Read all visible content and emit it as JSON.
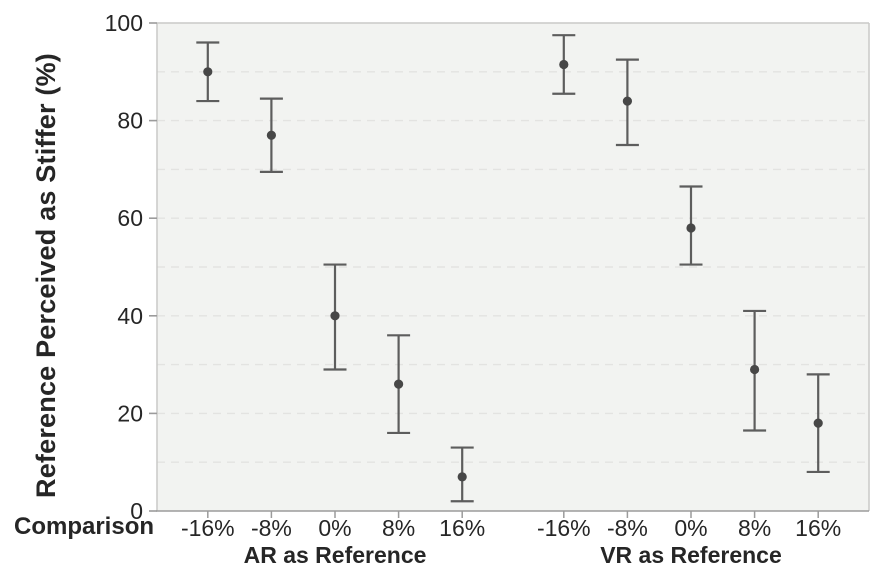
{
  "chart_data": {
    "type": "scatter",
    "title": "",
    "ylabel": "Reference Perceived as Stiffer (%)",
    "xlabel": "Comparison",
    "ylim": [
      0,
      100
    ],
    "yticks": [
      0,
      20,
      40,
      60,
      80,
      100
    ],
    "grid": {
      "orientation": "horizontal",
      "interval": 10,
      "style": "dashed"
    },
    "legend": "none",
    "categories": [
      "-16%",
      "-8%",
      "0%",
      "8%",
      "16%"
    ],
    "groups": [
      {
        "label": "AR as Reference",
        "points": [
          {
            "category": "-16%",
            "mean": 90,
            "ci_low": 84,
            "ci_high": 96
          },
          {
            "category": "-8%",
            "mean": 77,
            "ci_low": 69.5,
            "ci_high": 84.5
          },
          {
            "category": "0%",
            "mean": 40,
            "ci_low": 29,
            "ci_high": 50.5
          },
          {
            "category": "8%",
            "mean": 26,
            "ci_low": 16,
            "ci_high": 36
          },
          {
            "category": "16%",
            "mean": 7,
            "ci_low": 2,
            "ci_high": 13
          }
        ]
      },
      {
        "label": "VR as Reference",
        "points": [
          {
            "category": "-16%",
            "mean": 91.5,
            "ci_low": 85.5,
            "ci_high": 97.5
          },
          {
            "category": "-8%",
            "mean": 84,
            "ci_low": 75,
            "ci_high": 92.5
          },
          {
            "category": "0%",
            "mean": 58,
            "ci_low": 50.5,
            "ci_high": 66.5
          },
          {
            "category": "8%",
            "mean": 29,
            "ci_low": 16.5,
            "ci_high": 41
          },
          {
            "category": "16%",
            "mean": 18,
            "ci_low": 8,
            "ci_high": 28
          }
        ]
      }
    ],
    "colors": {
      "plot_bg": "#f2f3f1",
      "grid": "#e3e3e1",
      "border": "#c9c9c7",
      "axis": "#9b9b9b",
      "error_bar": "#5d5d5d",
      "point": "#474747",
      "text": "#262626"
    }
  }
}
